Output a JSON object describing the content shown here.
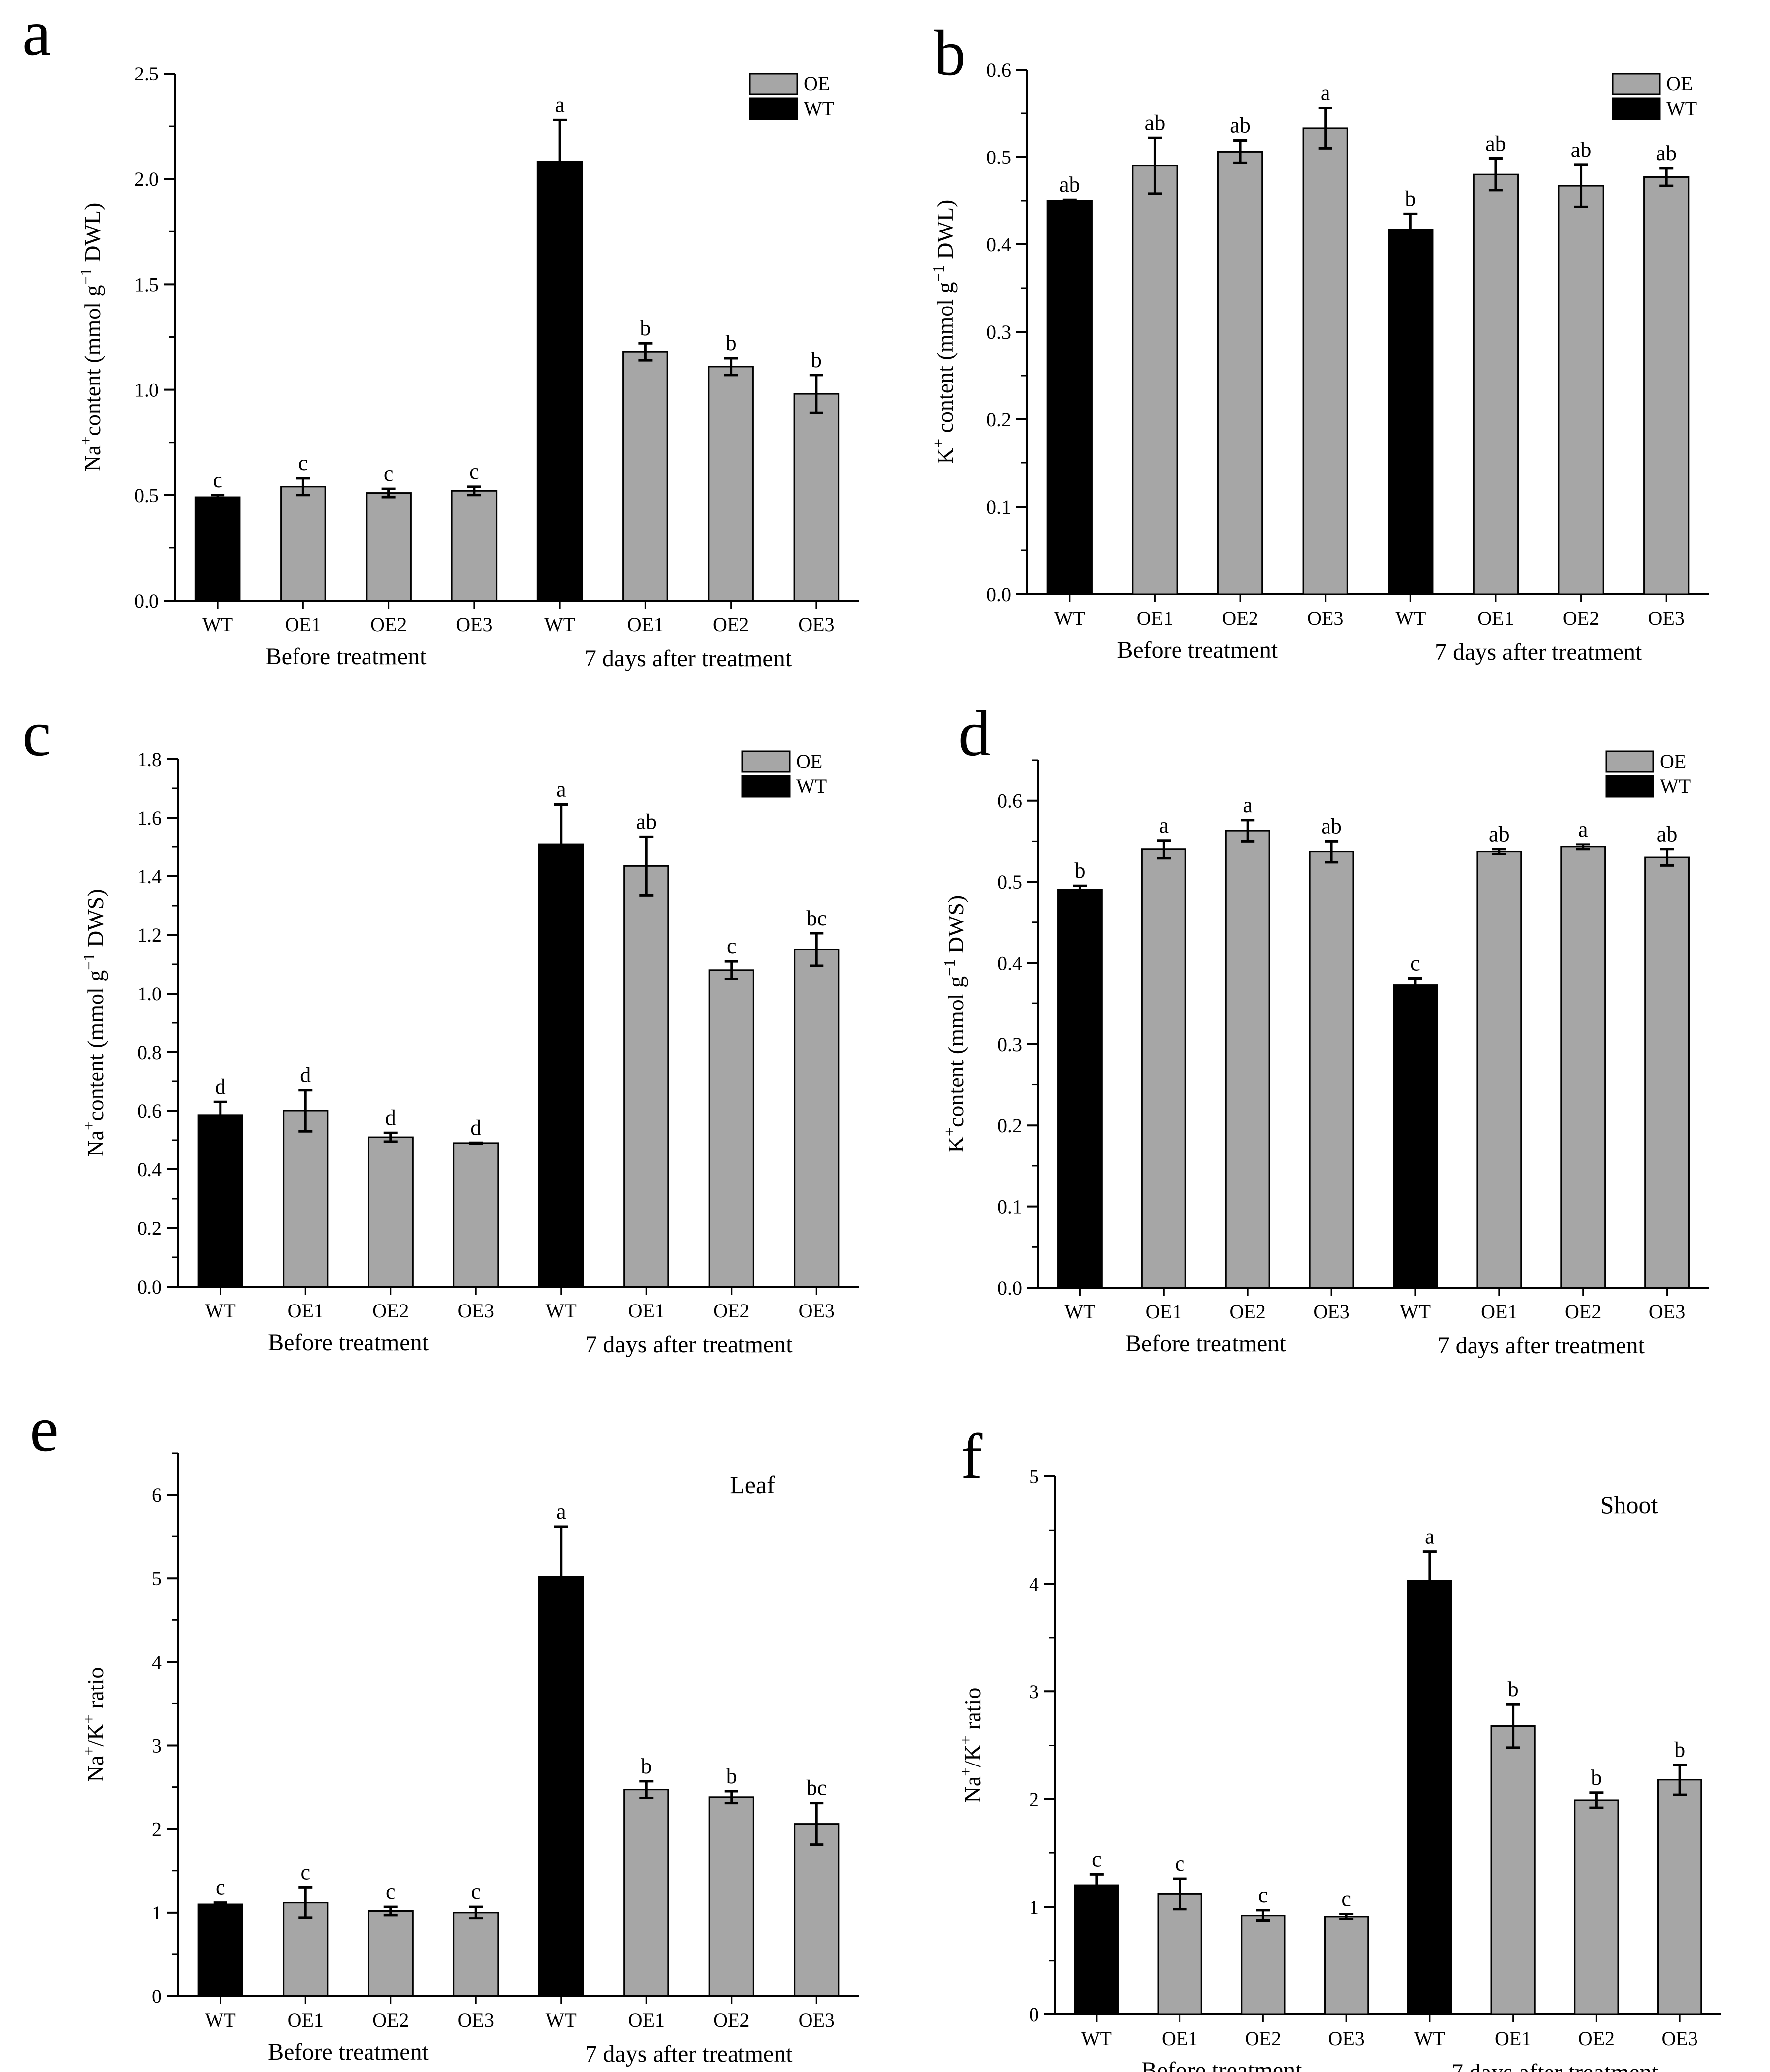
{
  "figure": {
    "categories": [
      "WT",
      "OE1",
      "OE2",
      "OE3",
      "WT",
      "OE1",
      "OE2",
      "OE3"
    ],
    "group_labels": [
      "Before treatment",
      "7 days after treatment"
    ],
    "legend": [
      "OE",
      "WT"
    ],
    "colors": {
      "WT": "#000000",
      "OE": "#a6a6a6",
      "axis": "#000000"
    }
  },
  "chart_data": [
    {
      "type": "bar",
      "panel": "a",
      "ylabel": "Na⁺content (mmol g⁻¹ DWL)",
      "ylim": [
        0,
        2.5
      ],
      "yticks": [
        "0.0",
        "0.5",
        "1.0",
        "1.5",
        "2.0",
        "2.5"
      ],
      "minor": 0.25,
      "categories": [
        "WT",
        "OE1",
        "OE2",
        "OE3",
        "WT",
        "OE1",
        "OE2",
        "OE3"
      ],
      "values": [
        0.49,
        0.54,
        0.51,
        0.52,
        2.08,
        1.18,
        1.11,
        0.98
      ],
      "errors": [
        0.01,
        0.04,
        0.02,
        0.02,
        0.2,
        0.04,
        0.04,
        0.09
      ],
      "letters": [
        "c",
        "c",
        "c",
        "c",
        "a",
        "b",
        "b",
        "b"
      ],
      "legend": [
        "OE",
        "WT"
      ],
      "annotation": ""
    },
    {
      "type": "bar",
      "panel": "b",
      "ylabel": "K⁺ content (mmol g⁻¹ DWL)",
      "ylim": [
        0,
        0.6
      ],
      "yticks": [
        "0.0",
        "0.1",
        "0.2",
        "0.3",
        "0.4",
        "0.5",
        "0.6"
      ],
      "minor": 0.05,
      "categories": [
        "WT",
        "OE1",
        "OE2",
        "OE3",
        "WT",
        "OE1",
        "OE2",
        "OE3"
      ],
      "values": [
        0.45,
        0.49,
        0.506,
        0.533,
        0.417,
        0.48,
        0.467,
        0.477
      ],
      "errors": [
        0.001,
        0.032,
        0.013,
        0.023,
        0.018,
        0.018,
        0.024,
        0.01
      ],
      "letters": [
        "ab",
        "ab",
        "ab",
        "a",
        "b",
        "ab",
        "ab",
        "ab"
      ],
      "legend": [
        "OE",
        "WT"
      ],
      "annotation": ""
    },
    {
      "type": "bar",
      "panel": "c",
      "ylabel": "Na⁺content (mmol g⁻¹ DWS)",
      "ylim": [
        0,
        1.8
      ],
      "yticks": [
        "0.0",
        "0.2",
        "0.4",
        "0.6",
        "0.8",
        "1.0",
        "1.2",
        "1.4",
        "1.6",
        "1.8"
      ],
      "minor": 0.1,
      "categories": [
        "WT",
        "OE1",
        "OE2",
        "OE3",
        "WT",
        "OE1",
        "OE2",
        "OE3"
      ],
      "values": [
        0.585,
        0.6,
        0.51,
        0.49,
        1.51,
        1.435,
        1.08,
        1.15
      ],
      "errors": [
        0.045,
        0.07,
        0.015,
        0.001,
        0.135,
        0.1,
        0.03,
        0.055
      ],
      "letters": [
        "d",
        "d",
        "d",
        "d",
        "a",
        "ab",
        "c",
        "bc"
      ],
      "legend": [
        "OE",
        "WT"
      ],
      "annotation": ""
    },
    {
      "type": "bar",
      "panel": "d",
      "ylabel": "K⁺content (mmol g⁻¹ DWS)",
      "ylim": [
        0,
        0.65
      ],
      "yticks": [
        "0.0",
        "0.1",
        "0.2",
        "0.3",
        "0.4",
        "0.5",
        "0.6"
      ],
      "minor": 0.05,
      "categories": [
        "WT",
        "OE1",
        "OE2",
        "OE3",
        "WT",
        "OE1",
        "OE2",
        "OE3"
      ],
      "values": [
        0.49,
        0.54,
        0.563,
        0.537,
        0.373,
        0.537,
        0.543,
        0.53
      ],
      "errors": [
        0.005,
        0.011,
        0.013,
        0.013,
        0.008,
        0.003,
        0.003,
        0.01
      ],
      "letters": [
        "b",
        "a",
        "a",
        "ab",
        "c",
        "ab",
        "a",
        "ab"
      ],
      "legend": [
        "OE",
        "WT"
      ],
      "annotation": ""
    },
    {
      "type": "bar",
      "panel": "e",
      "ylabel": "Na⁺/K⁺ ratio",
      "ylim": [
        0,
        6.5
      ],
      "yticks": [
        "0",
        "1",
        "2",
        "3",
        "4",
        "5",
        "6"
      ],
      "minor": 0.5,
      "categories": [
        "WT",
        "OE1",
        "OE2",
        "OE3",
        "WT",
        "OE1",
        "OE2",
        "OE3"
      ],
      "values": [
        1.1,
        1.12,
        1.02,
        1.0,
        5.02,
        2.47,
        2.38,
        2.06
      ],
      "errors": [
        0.02,
        0.18,
        0.05,
        0.07,
        0.6,
        0.1,
        0.07,
        0.25
      ],
      "letters": [
        "c",
        "c",
        "c",
        "c",
        "a",
        "b",
        "b",
        "bc"
      ],
      "legend": [],
      "annotation": "Leaf"
    },
    {
      "type": "bar",
      "panel": "f",
      "ylabel": "Na⁺/K⁺ ratio",
      "ylim": [
        0,
        5
      ],
      "yticks": [
        "0",
        "1",
        "2",
        "3",
        "4",
        "5"
      ],
      "minor": 0.5,
      "categories": [
        "WT",
        "OE1",
        "OE2",
        "OE3",
        "WT",
        "OE1",
        "OE2",
        "OE3"
      ],
      "values": [
        1.2,
        1.12,
        0.92,
        0.91,
        4.03,
        2.68,
        1.99,
        2.18
      ],
      "errors": [
        0.1,
        0.14,
        0.05,
        0.025,
        0.27,
        0.2,
        0.07,
        0.14
      ],
      "letters": [
        "c",
        "c",
        "c",
        "c",
        "a",
        "b",
        "b",
        "b"
      ],
      "legend": [],
      "annotation": "Shoot"
    }
  ]
}
